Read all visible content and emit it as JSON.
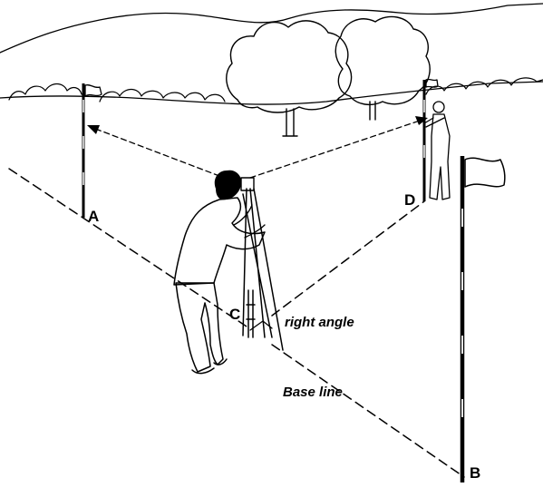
{
  "labels": {
    "point_a": "A",
    "point_b": "B",
    "point_c": "C",
    "point_d": "D",
    "right_angle": "right angle",
    "base_line": "Base line"
  },
  "colors": {
    "ink": "#000000",
    "background": "#ffffff"
  }
}
